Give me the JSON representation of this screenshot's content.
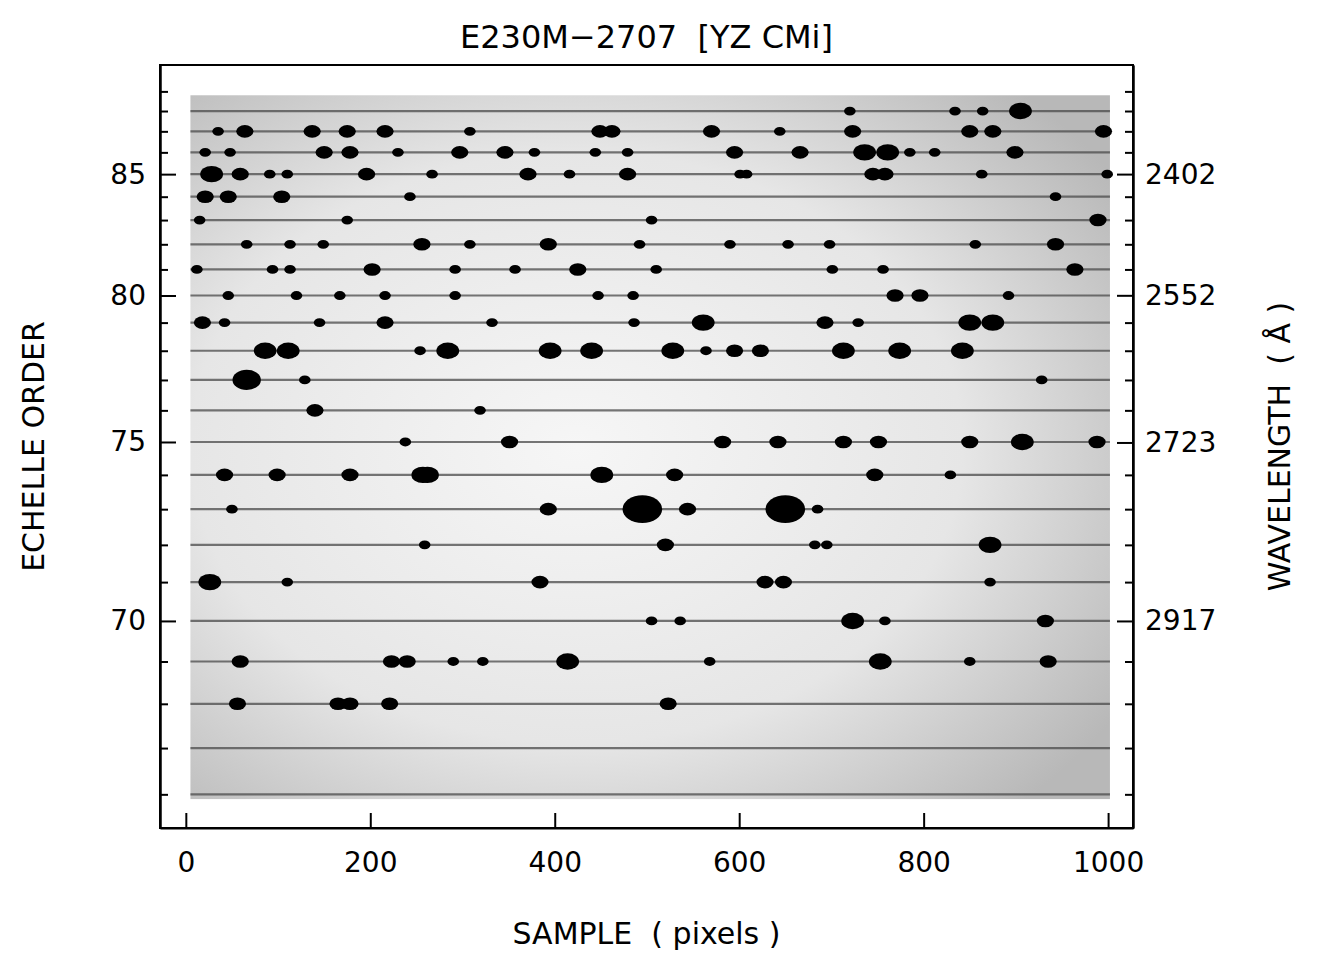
{
  "chart_data": {
    "type": "scatter",
    "title": "E230M−2707  [YZ CMi]",
    "x_label": "SAMPLE  ( pixels )",
    "y_label": "ECHELLE ORDER",
    "y2_label": "WAVELENGTH  ( Å )",
    "xlim": [
      -28,
      1027
    ],
    "xticks": [
      0,
      200,
      400,
      600,
      800,
      1000
    ],
    "ylim": [
      65.3,
      90.4
    ],
    "yticks": [
      70,
      75,
      80,
      85
    ],
    "yticks_minor": [
      66,
      67,
      68,
      69,
      71,
      72,
      73,
      74,
      76,
      77,
      78,
      79,
      81,
      82,
      83,
      84,
      86,
      87,
      88,
      89
    ],
    "y2lim": [
      2258.5,
      3127
    ],
    "y2ticks": [
      2402,
      2552,
      2723,
      2917
    ],
    "detector": {
      "x": [
        5,
        1002
      ],
      "y": [
        65.9,
        88.8
      ]
    },
    "orders": [
      66,
      67,
      68,
      69,
      70,
      71,
      72,
      73,
      74,
      75,
      76,
      77,
      78,
      79,
      80,
      81,
      82,
      83,
      84,
      85,
      86,
      87,
      88
    ],
    "color": "#000000",
    "x": [
      720,
      834,
      864,
      905,
      35,
      64,
      137,
      175,
      216,
      308,
      449,
      462,
      570,
      644,
      723,
      850,
      875,
      995,
      21,
      48,
      150,
      178,
      230,
      297,
      346,
      378,
      444,
      479,
      595,
      666,
      736,
      761,
      785,
      812,
      899,
      28,
      59,
      91,
      110,
      196,
      267,
      371,
      416,
      479,
      601,
      608,
      745,
      758,
      863,
      999,
      21,
      46,
      104,
      243,
      943,
      15,
      175,
      505,
      989,
      66,
      113,
      149,
      256,
      308,
      393,
      492,
      590,
      653,
      698,
      856,
      943,
      12,
      94,
      113,
      202,
      292,
      357,
      425,
      510,
      701,
      756,
      964,
      46,
      120,
      167,
      216,
      292,
      447,
      485,
      769,
      796,
      892,
      18,
      42,
      145,
      216,
      332,
      486,
      561,
      693,
      729,
      850,
      875,
      86,
      111,
      254,
      284,
      395,
      440,
      528,
      564,
      595,
      623,
      713,
      774,
      842,
      66,
      129,
      928,
      140,
      319,
      238,
      351,
      582,
      642,
      713,
      751,
      850,
      907,
      988,
      42,
      99,
      178,
      257,
      262,
      451,
      530,
      747,
      829,
      50,
      393,
      495,
      544,
      650,
      685,
      259,
      520,
      682,
      695,
      872,
      26,
      110,
      384,
      628,
      648,
      872,
      505,
      536,
      723,
      758,
      932,
      59,
      223,
      240,
      290,
      322,
      414,
      568,
      753,
      850,
      935,
      56,
      165,
      178,
      221,
      523
    ],
    "y": [
      88,
      88,
      88,
      88,
      87,
      87,
      87,
      87,
      87,
      87,
      87,
      87,
      87,
      87,
      87,
      87,
      87,
      87,
      86,
      86,
      86,
      86,
      86,
      86,
      86,
      86,
      86,
      86,
      86,
      86,
      86,
      86,
      86,
      86,
      86,
      85,
      85,
      85,
      85,
      85,
      85,
      85,
      85,
      85,
      85,
      85,
      85,
      85,
      85,
      85,
      84,
      84,
      84,
      84,
      84,
      83,
      83,
      83,
      83,
      82,
      82,
      82,
      82,
      82,
      82,
      82,
      82,
      82,
      82,
      82,
      82,
      81,
      81,
      81,
      81,
      81,
      81,
      81,
      81,
      81,
      81,
      81,
      80,
      80,
      80,
      80,
      80,
      80,
      80,
      80,
      80,
      80,
      79,
      79,
      79,
      79,
      79,
      79,
      79,
      79,
      79,
      79,
      79,
      78,
      78,
      78,
      78,
      78,
      78,
      78,
      78,
      78,
      78,
      78,
      78,
      78,
      77,
      77,
      77,
      76,
      76,
      75,
      75,
      75,
      75,
      75,
      75,
      75,
      75,
      75,
      74,
      74,
      74,
      74,
      74,
      74,
      74,
      74,
      74,
      73,
      73,
      73,
      73,
      73,
      73,
      72,
      72,
      72,
      72,
      72,
      71,
      71,
      71,
      71,
      71,
      71,
      70,
      70,
      70,
      70,
      70,
      69,
      69,
      69,
      69,
      69,
      69,
      69,
      69,
      69,
      69,
      68,
      68,
      68,
      68,
      68
    ],
    "size": [
      1,
      1,
      1,
      3,
      1,
      2,
      2,
      2,
      2,
      1,
      2,
      2,
      2,
      1,
      2,
      2,
      2,
      2,
      1,
      1,
      2,
      2,
      1,
      2,
      2,
      1,
      1,
      1,
      2,
      2,
      3,
      3,
      1,
      1,
      2,
      3,
      2,
      1,
      1,
      2,
      1,
      2,
      1,
      2,
      1,
      1,
      2,
      2,
      1,
      1,
      2,
      2,
      2,
      1,
      1,
      1,
      1,
      1,
      2,
      1,
      1,
      1,
      2,
      1,
      2,
      1,
      1,
      1,
      1,
      1,
      2,
      1,
      1,
      1,
      2,
      1,
      1,
      2,
      1,
      1,
      1,
      2,
      1,
      1,
      1,
      1,
      1,
      1,
      1,
      2,
      2,
      1,
      2,
      1,
      1,
      2,
      1,
      1,
      3,
      2,
      1,
      3,
      3,
      3,
      3,
      1,
      3,
      3,
      3,
      3,
      1,
      2,
      2,
      3,
      3,
      3,
      4,
      1,
      1,
      2,
      1,
      1,
      2,
      2,
      2,
      2,
      2,
      2,
      3,
      2,
      2,
      2,
      2,
      3,
      3,
      3,
      2,
      2,
      1,
      1,
      2,
      6,
      2,
      6,
      1,
      1,
      2,
      1,
      1,
      3,
      3,
      1,
      2,
      2,
      2,
      1,
      1,
      1,
      3,
      1,
      2,
      2,
      2,
      2,
      1,
      1,
      3,
      1,
      3,
      1,
      2,
      2,
      2,
      2,
      2,
      2
    ]
  }
}
